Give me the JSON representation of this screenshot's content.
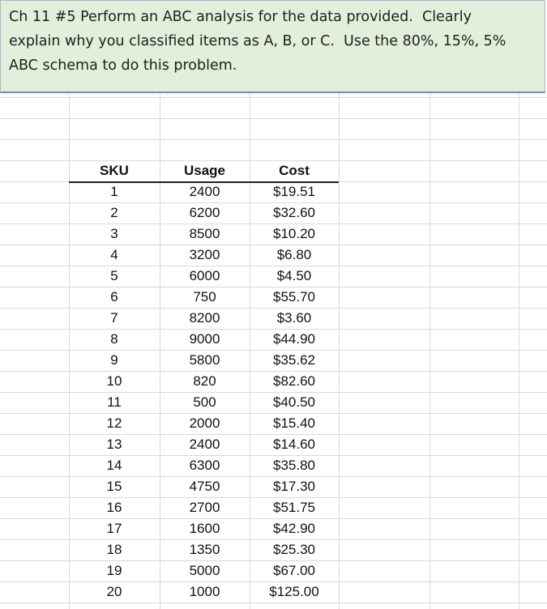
{
  "prompt": {
    "lines": [
      "Ch 11 #5 Perform an ABC analysis for the data provided.  Clearly",
      "explain why you classified items as A, B, or C.  Use the 80%, 15%, 5%",
      "ABC schema to do this problem."
    ]
  },
  "table": {
    "columns": [
      "SKU",
      "Usage",
      "Cost"
    ],
    "rows": [
      [
        "1",
        "2400",
        "$19.51"
      ],
      [
        "2",
        "6200",
        "$32.60"
      ],
      [
        "3",
        "8500",
        "$10.20"
      ],
      [
        "4",
        "3200",
        "$6.80"
      ],
      [
        "5",
        "6000",
        "$4.50"
      ],
      [
        "6",
        "750",
        "$55.70"
      ],
      [
        "7",
        "8200",
        "$3.60"
      ],
      [
        "8",
        "9000",
        "$44.90"
      ],
      [
        "9",
        "5800",
        "$35.62"
      ],
      [
        "10",
        "820",
        "$82.60"
      ],
      [
        "11",
        "500",
        "$40.50"
      ],
      [
        "12",
        "2000",
        "$15.40"
      ],
      [
        "13",
        "2400",
        "$14.60"
      ],
      [
        "14",
        "6300",
        "$35.80"
      ],
      [
        "15",
        "4750",
        "$17.30"
      ],
      [
        "16",
        "2700",
        "$51.75"
      ],
      [
        "17",
        "1600",
        "$42.90"
      ],
      [
        "18",
        "1350",
        "$25.30"
      ],
      [
        "19",
        "5000",
        "$67.00"
      ],
      [
        "20",
        "1000",
        "$125.00"
      ]
    ]
  }
}
